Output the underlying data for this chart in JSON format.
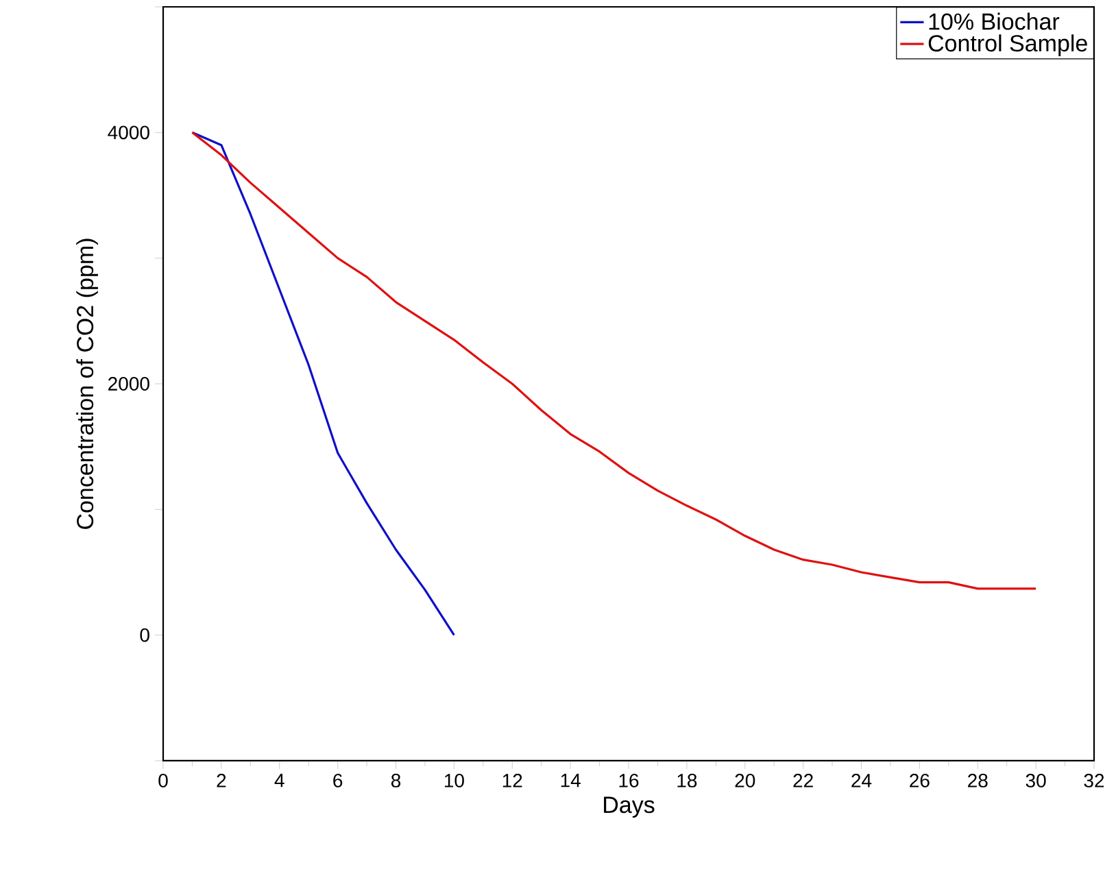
{
  "chart_data": {
    "type": "line",
    "xlabel": "Days",
    "ylabel": "Concentration of CO2 (ppm)",
    "xlim": [
      0,
      32
    ],
    "xticks": [
      0,
      2,
      4,
      6,
      8,
      10,
      12,
      14,
      16,
      18,
      20,
      22,
      24,
      26,
      28,
      30,
      32
    ],
    "ylim": [
      -1000,
      5000
    ],
    "yticks": [
      {
        "value": -1000,
        "label": null
      },
      0,
      {
        "value": 1000,
        "label": null
      },
      2000,
      {
        "value": 3000,
        "label": null
      },
      4000,
      {
        "value": 5000,
        "label": null
      }
    ],
    "legend": "top right",
    "grid": false,
    "marker": "none",
    "line_style": "solid",
    "series": [
      {
        "name": "10% Biochar",
        "color": "#1010c8",
        "x": [
          1,
          2,
          3,
          4,
          5,
          6,
          7,
          8,
          9,
          10
        ],
        "values": [
          4000,
          3900,
          3350,
          2750,
          2150,
          1450,
          1050,
          680,
          360,
          0
        ]
      },
      {
        "name": "Control Sample",
        "color": "#e01010",
        "x": [
          1,
          2,
          3,
          4,
          5,
          6,
          7,
          8,
          9,
          10,
          11,
          12,
          13,
          14,
          15,
          16,
          17,
          18,
          19,
          20,
          21,
          22,
          23,
          24,
          25,
          26,
          27,
          28,
          29,
          30
        ],
        "values": [
          4000,
          3820,
          3600,
          3400,
          3200,
          3000,
          2850,
          2650,
          2500,
          2350,
          2170,
          2000,
          1790,
          1600,
          1460,
          1290,
          1150,
          1030,
          920,
          790,
          680,
          600,
          560,
          500,
          460,
          420,
          420,
          370,
          370,
          370
        ]
      }
    ]
  }
}
